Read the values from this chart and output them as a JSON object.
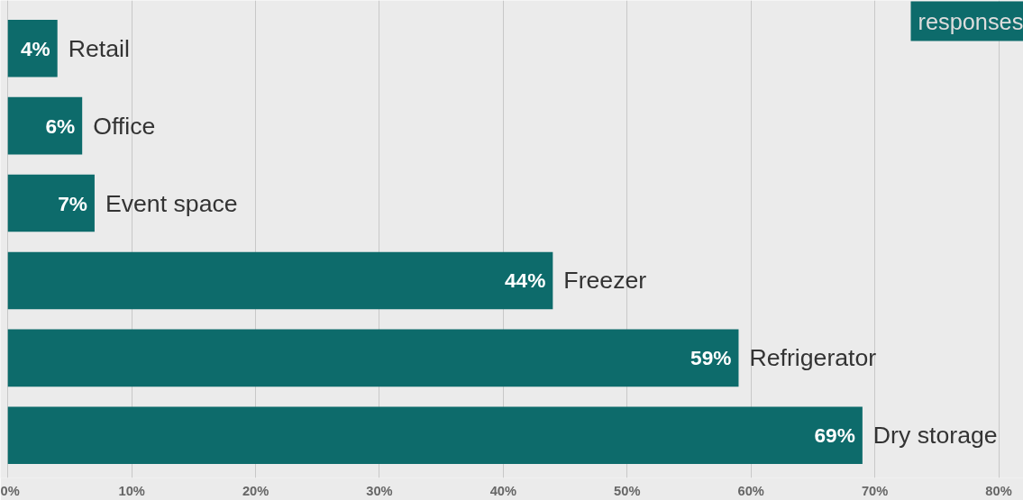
{
  "chart_data": {
    "type": "bar",
    "orientation": "horizontal",
    "categories": [
      "Retail",
      "Office",
      "Event space",
      "Freezer",
      "Refrigerator",
      "Dry storage"
    ],
    "values": [
      4,
      6,
      7,
      44,
      59,
      69
    ],
    "value_labels": [
      "4%",
      "6%",
      "7%",
      "44%",
      "59%",
      "69%"
    ],
    "color": "#0d6b6b",
    "xlim": [
      -0.6,
      82
    ],
    "xticks": [
      {
        "value": 0,
        "label": "0%"
      },
      {
        "value": 10,
        "label": "10%"
      },
      {
        "value": 20,
        "label": "20%"
      },
      {
        "value": 30,
        "label": "30%"
      },
      {
        "value": 40,
        "label": "40%"
      },
      {
        "value": 50,
        "label": "50%"
      },
      {
        "value": 60,
        "label": "60%"
      },
      {
        "value": 70,
        "label": "70%"
      },
      {
        "value": 80,
        "label": "80%"
      }
    ],
    "grid": "x",
    "tick_labels": "x",
    "annotations": [
      "responses"
    ]
  }
}
